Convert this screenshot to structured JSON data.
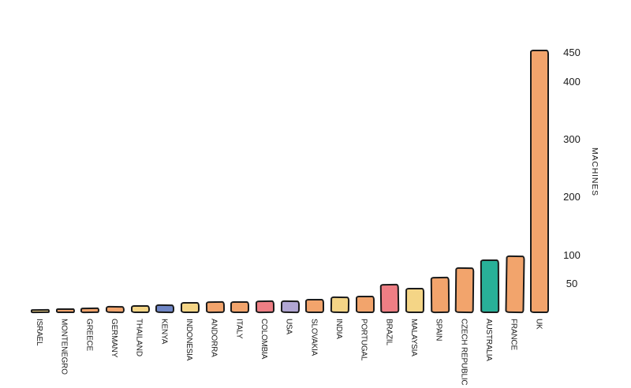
{
  "chart_data": {
    "type": "bar",
    "title": "",
    "xlabel": "",
    "ylabel": "MACHINES",
    "ylim": [
      0,
      470
    ],
    "yticks": [
      50,
      100,
      200,
      300,
      400,
      450
    ],
    "grid": false,
    "legend": "none",
    "categories": [
      "ISRAEL",
      "MONTENEGRO",
      "GREECE",
      "GERMANY",
      "THAILAND",
      "KENYA",
      "INDONESIA",
      "ANDORRA",
      "ITALY",
      "COLOMBIA",
      "USA",
      "SLOVAKIA",
      "INDIA",
      "PORTUGAL",
      "BRAZIL",
      "MALAYSIA",
      "SPAIN",
      "CZECH REPUBLIC",
      "AUSTRALIA",
      "FRANCE",
      "UK"
    ],
    "values": [
      7,
      8,
      10,
      12,
      13,
      15,
      19,
      21,
      20,
      22,
      22,
      25,
      28,
      30,
      50,
      44,
      63,
      79,
      93,
      99,
      455
    ],
    "bar_colors": [
      "yellow",
      "orange",
      "orange",
      "orange",
      "yellow",
      "blue",
      "yellow",
      "orange",
      "orange",
      "pink",
      "purple",
      "orange",
      "yellow",
      "orange",
      "pink",
      "yellow",
      "orange",
      "orange",
      "teal",
      "orange",
      "orange"
    ],
    "palette": {
      "orange": "#F2A46C",
      "yellow": "#F4D586",
      "blue": "#6F86C6",
      "pink": "#EE7E84",
      "purple": "#B1A6D3",
      "teal": "#28B098",
      "outline": "#1B1B1B"
    }
  }
}
